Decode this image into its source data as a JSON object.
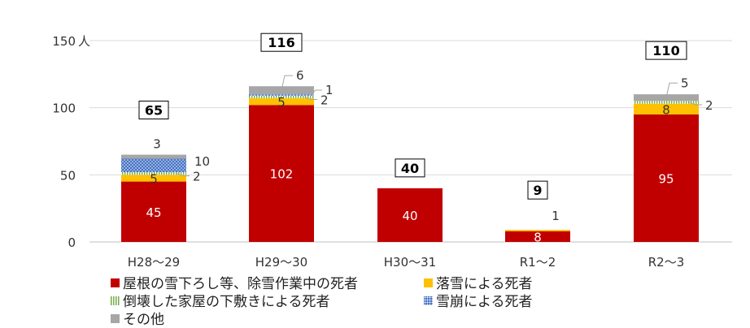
{
  "chart_data": {
    "type": "bar",
    "stacked": true,
    "categories": [
      "H28～29",
      "H29～30",
      "H30～31",
      "R1～2",
      "R2～3"
    ],
    "y_unit": "人",
    "ylim": [
      0,
      150
    ],
    "yticks": [
      0,
      50,
      100,
      150
    ],
    "totals": [
      65,
      116,
      40,
      9,
      110
    ],
    "series": [
      {
        "name": "屋根の雪下ろし等、除雪作業中の死者",
        "color": "#C00000",
        "pattern": "solid",
        "values": [
          45,
          102,
          40,
          8,
          95
        ]
      },
      {
        "name": "落雪による死者",
        "color": "#FFC000",
        "pattern": "solid",
        "values": [
          5,
          5,
          0,
          1,
          8
        ]
      },
      {
        "name": "倒壊した家屋の下敷きによる死者",
        "color": "#70AD47",
        "pattern": "vertical-stripes",
        "values": [
          2,
          2,
          0,
          0,
          2
        ]
      },
      {
        "name": "雪崩による死者",
        "color": "#4472C4",
        "pattern": "dots",
        "values": [
          10,
          1,
          0,
          0,
          0
        ]
      },
      {
        "name": "その他",
        "color": "#A6A6A6",
        "pattern": "solid",
        "values": [
          3,
          6,
          0,
          0,
          5
        ]
      }
    ],
    "data_labels": [
      [
        "45",
        "5",
        "2",
        "10",
        "3"
      ],
      [
        "102",
        "5",
        "2",
        "1",
        "6"
      ],
      [
        "40"
      ],
      [
        "8",
        "1"
      ],
      [
        "95",
        "8",
        "2",
        "",
        "5"
      ]
    ],
    "legend_position": "bottom",
    "grid": true
  }
}
